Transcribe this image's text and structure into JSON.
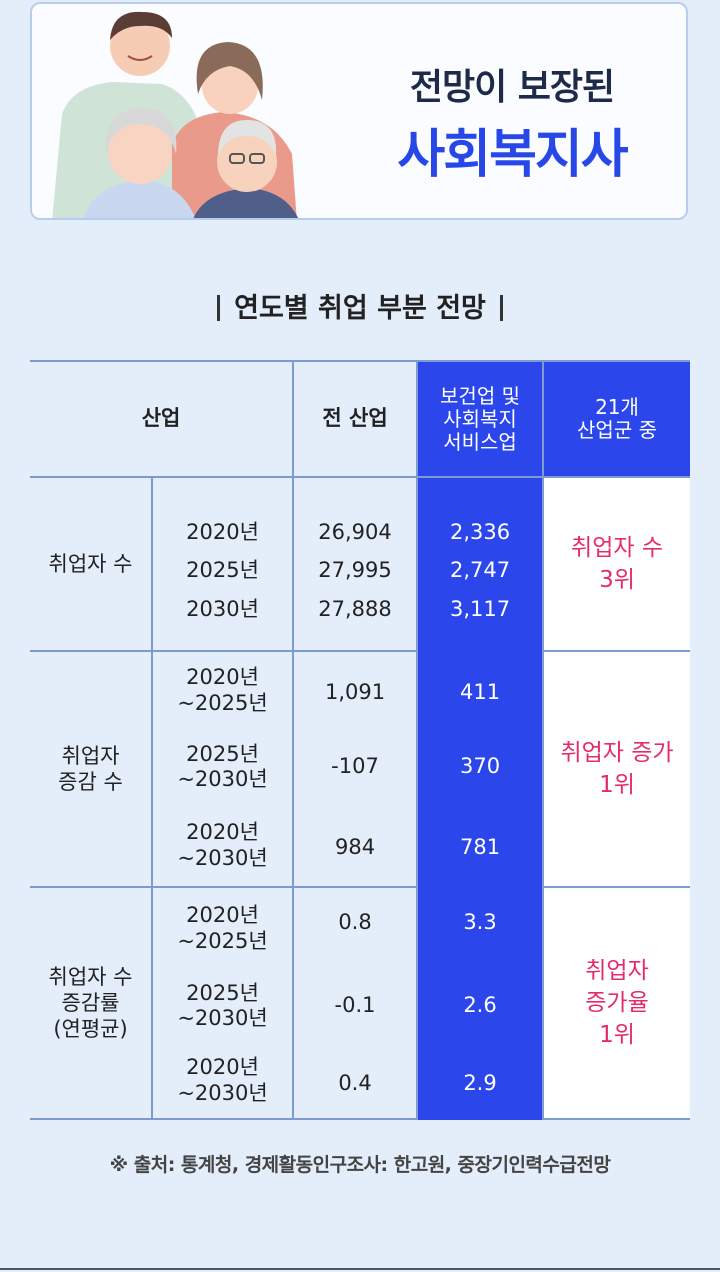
{
  "banner": {
    "subtitle": "전망이 보장된",
    "title": "사회복지사"
  },
  "section_title": "연도별 취업 부분 전망",
  "table": {
    "headers": {
      "industry": "산업",
      "all_industry": "전 산업",
      "health_welfare": "보건업 및 사회복지 서비스업",
      "rank": "21개 산업군 중"
    },
    "groups": [
      {
        "label": "취업자 수",
        "rank": "취업자 수 3위",
        "rows": [
          {
            "period": "2020년",
            "all": "26,904",
            "health": "2,336"
          },
          {
            "period": "2025년",
            "all": "27,995",
            "health": "2,747"
          },
          {
            "period": "2030년",
            "all": "27,888",
            "health": "3,117"
          }
        ]
      },
      {
        "label": "취업자 증감 수",
        "rank": "취업자 증가 1위",
        "rows": [
          {
            "period": "2020년 ~2025년",
            "all": "1,091",
            "health": "411"
          },
          {
            "period": "2025년 ~2030년",
            "all": "-107",
            "health": "370"
          },
          {
            "period": "2020년 ~2030년",
            "all": "984",
            "health": "781"
          }
        ]
      },
      {
        "label": "취업자 수 증감률 (연평균)",
        "rank": "취업자 증가율 1위",
        "rows": [
          {
            "period": "2020년 ~2025년",
            "all": "0.8",
            "health": "3.3"
          },
          {
            "period": "2025년 ~2030년",
            "all": "-0.1",
            "health": "2.6"
          },
          {
            "period": "2020년 ~2030년",
            "all": "0.4",
            "health": "2.9"
          }
        ]
      }
    ]
  },
  "source": "※ 출처: 통계청, 경제활동인구조사: 한고원, 중장기인력수급전망"
}
